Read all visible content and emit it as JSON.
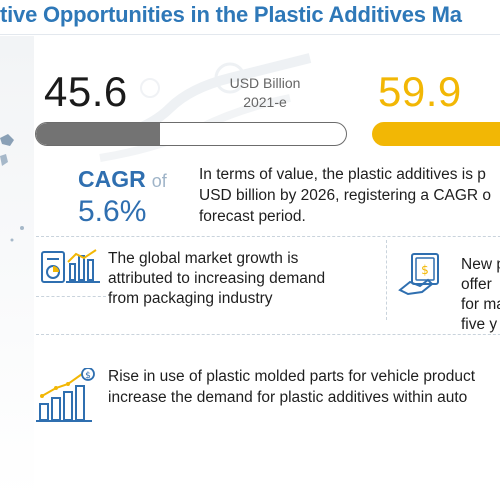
{
  "header": {
    "title": "tive Opportunities in the Plastic Additives Ma"
  },
  "market_size": {
    "value_2021": "45.6",
    "unit_label": "USD Billion",
    "year_label": "2021-e",
    "value_2026": "59.9",
    "bar_2021_fill_fraction": 0.4,
    "bar_2021_color": "#737373",
    "bar_2026_color": "#f2b705"
  },
  "cagr": {
    "label": "CAGR",
    "of_text": "of",
    "value": "5.6%",
    "color": "#2f6fb0"
  },
  "summary": {
    "lines": [
      "In terms of value, the plastic additives is p",
      "USD billion by 2026, registering a CAGR o",
      "forecast period."
    ]
  },
  "highlights": [
    {
      "icon": "document-chart-icon",
      "lines": [
        "The global market growth is",
        "attributed to increasing demand",
        "from packaging industry"
      ]
    },
    {
      "icon": "money-hand-icon",
      "lines": [
        "New p",
        "offer",
        "for ma",
        "five y"
      ]
    },
    {
      "icon": "growth-bar-chart-icon",
      "lines": [
        "Rise in use of plastic molded parts for vehicle product",
        "increase the demand for plastic additives within auto"
      ]
    }
  ],
  "colors": {
    "title_blue": "#2e78b8",
    "accent_yellow": "#f2b705",
    "icon_blue": "#2f6fb0"
  }
}
